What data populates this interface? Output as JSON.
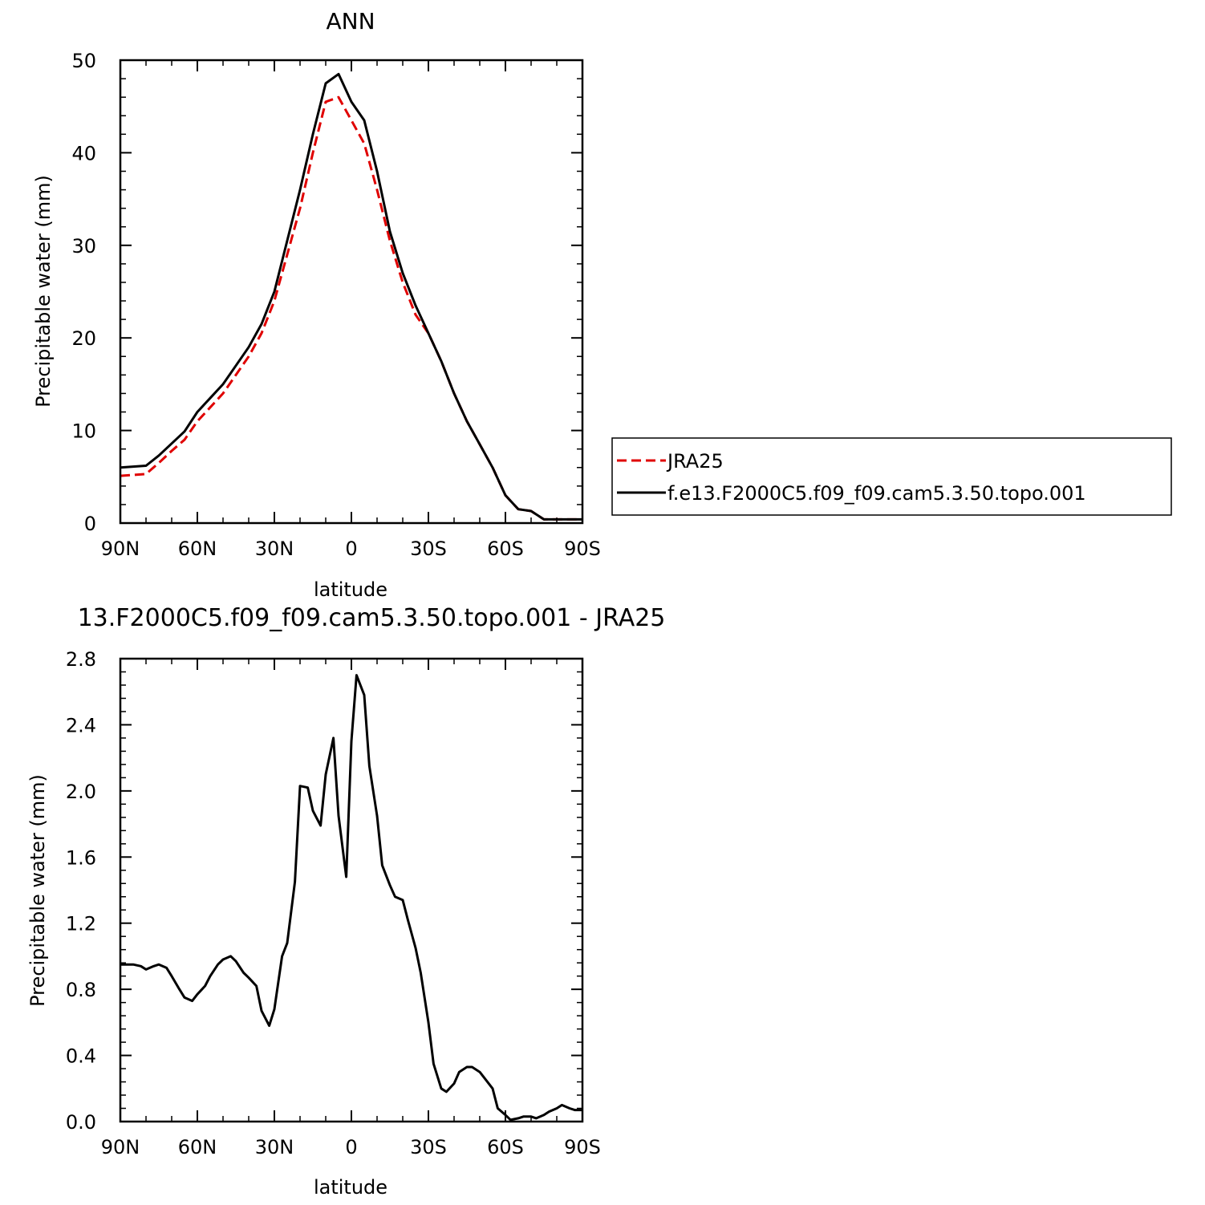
{
  "chart_data": [
    {
      "type": "line",
      "title": "ANN",
      "xlabel": "latitude",
      "ylabel": "Precipitable water (mm)",
      "xlim": [
        -90,
        90
      ],
      "ylim": [
        0,
        50
      ],
      "xticks": [
        -90,
        -60,
        -30,
        0,
        30,
        60,
        90
      ],
      "xtick_labels": [
        "90N",
        "60N",
        "30N",
        "0",
        "30S",
        "60S",
        "90S"
      ],
      "yticks": [
        0,
        10,
        20,
        30,
        40,
        50
      ],
      "ytick_labels": [
        "0",
        "10",
        "20",
        "30",
        "40",
        "50"
      ],
      "legend_position": "right",
      "series": [
        {
          "name": "JRA25",
          "color": "#e00000",
          "style": "dashed",
          "x": [
            -90,
            -85,
            -80,
            -75,
            -70,
            -65,
            -60,
            -55,
            -50,
            -45,
            -40,
            -35,
            -30,
            -25,
            -20,
            -15,
            -10,
            -5,
            0,
            5,
            10,
            15,
            20,
            25,
            30,
            35,
            40,
            45,
            50,
            55,
            60,
            65,
            70,
            75,
            80,
            85,
            90
          ],
          "y": [
            5.1,
            5.2,
            5.3,
            6.5,
            7.8,
            9.0,
            11.0,
            12.5,
            14.0,
            16.0,
            18.0,
            20.5,
            24.0,
            29.0,
            34.0,
            40.0,
            45.5,
            46.0,
            43.5,
            41.0,
            36.0,
            30.5,
            26.0,
            22.5,
            20.5,
            17.5,
            14.0,
            11.0,
            8.5,
            6.0,
            3.0,
            1.5,
            1.3,
            0.4,
            0.4,
            0.4,
            0.4
          ]
        },
        {
          "name": "f.e13.F2000C5.f09_f09.cam5.3.50.topo.001",
          "color": "#000000",
          "style": "solid",
          "x": [
            -90,
            -85,
            -80,
            -75,
            -70,
            -65,
            -60,
            -55,
            -50,
            -45,
            -40,
            -35,
            -30,
            -25,
            -20,
            -15,
            -10,
            -5,
            0,
            5,
            10,
            15,
            20,
            25,
            30,
            35,
            40,
            45,
            50,
            55,
            60,
            65,
            70,
            75,
            80,
            85,
            90
          ],
          "y": [
            6.0,
            6.1,
            6.2,
            7.3,
            8.6,
            9.9,
            12.0,
            13.5,
            15.0,
            17.0,
            19.0,
            21.5,
            25.0,
            30.5,
            36.0,
            42.0,
            47.5,
            48.5,
            45.5,
            43.5,
            38.0,
            31.5,
            27.0,
            23.5,
            20.5,
            17.5,
            14.0,
            11.0,
            8.5,
            6.0,
            3.0,
            1.5,
            1.3,
            0.4,
            0.4,
            0.4,
            0.4
          ]
        }
      ]
    },
    {
      "type": "line",
      "title": "13.F2000C5.f09_f09.cam5.3.50.topo.001 - JRA25",
      "xlabel": "latitude",
      "ylabel": "Precipitable water (mm)",
      "xlim": [
        -90,
        90
      ],
      "ylim": [
        0,
        2.8
      ],
      "xticks": [
        -90,
        -60,
        -30,
        0,
        30,
        60,
        90
      ],
      "xtick_labels": [
        "90N",
        "60N",
        "30N",
        "0",
        "30S",
        "60S",
        "90S"
      ],
      "yticks": [
        0,
        0.4,
        0.8,
        1.2,
        1.6,
        2.0,
        2.4,
        2.8
      ],
      "ytick_labels": [
        "0.0",
        "0.4",
        "0.8",
        "1.2",
        "1.6",
        "2.0",
        "2.4",
        "2.8"
      ],
      "series": [
        {
          "color": "#000000",
          "style": "solid",
          "x": [
            -90,
            -85,
            -82,
            -80,
            -77,
            -75,
            -72,
            -70,
            -67,
            -65,
            -62,
            -60,
            -57,
            -55,
            -52,
            -50,
            -47,
            -45,
            -42,
            -40,
            -37,
            -35,
            -32,
            -30,
            -27,
            -25,
            -22,
            -20,
            -17,
            -15,
            -12,
            -10,
            -7,
            -5,
            -2,
            0,
            2,
            5,
            7,
            10,
            12,
            15,
            17,
            20,
            22,
            25,
            27,
            30,
            32,
            35,
            37,
            40,
            42,
            45,
            47,
            50,
            52,
            55,
            57,
            60,
            62,
            65,
            67,
            70,
            72,
            75,
            77,
            80,
            82,
            85,
            87,
            90
          ],
          "y": [
            0.95,
            0.95,
            0.94,
            0.92,
            0.94,
            0.95,
            0.93,
            0.88,
            0.8,
            0.75,
            0.73,
            0.77,
            0.82,
            0.88,
            0.95,
            0.98,
            1.0,
            0.97,
            0.9,
            0.87,
            0.82,
            0.67,
            0.58,
            0.68,
            1.0,
            1.08,
            1.45,
            2.03,
            2.02,
            1.88,
            1.79,
            2.1,
            2.32,
            1.85,
            1.48,
            2.3,
            2.7,
            2.58,
            2.15,
            1.85,
            1.55,
            1.43,
            1.36,
            1.34,
            1.22,
            1.05,
            0.9,
            0.6,
            0.35,
            0.2,
            0.18,
            0.23,
            0.3,
            0.33,
            0.33,
            0.3,
            0.26,
            0.2,
            0.08,
            0.04,
            0.01,
            0.02,
            0.03,
            0.03,
            0.02,
            0.04,
            0.06,
            0.08,
            0.1,
            0.08,
            0.07,
            0.07
          ]
        }
      ]
    }
  ]
}
